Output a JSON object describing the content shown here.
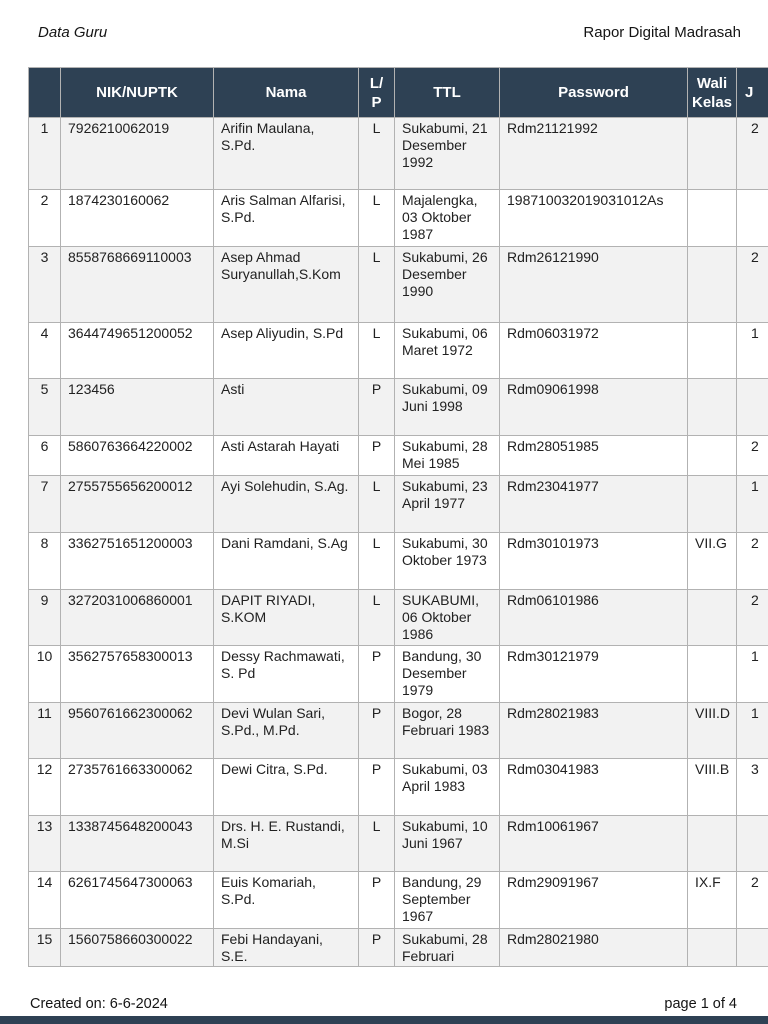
{
  "header": {
    "doc_title": "Data Guru",
    "app_title": "Rapor Digital Madrasah"
  },
  "table": {
    "columns": [
      "",
      "NIK/NUPTK",
      "Nama",
      "L/P",
      "TTL",
      "Password",
      "Wali Kelas",
      "J"
    ],
    "rows": [
      {
        "no": "1",
        "nik": "7926210062019",
        "nama": "Arifin Maulana, S.Pd.",
        "lp": "L",
        "ttl": "Sukabumi, 21 Desember 1992",
        "password": "Rdm21121992",
        "wali_kelas": "",
        "jml": "2"
      },
      {
        "no": "2",
        "nik": "1874230160062",
        "nama": "Aris Salman Alfarisi, S.Pd.",
        "lp": "L",
        "ttl": "Majalengka, 03 Oktober 1987",
        "password": "198710032019031012As",
        "wali_kelas": "",
        "jml": ""
      },
      {
        "no": "3",
        "nik": "8558768669110003",
        "nama": "Asep Ahmad Suryanullah,S.Kom",
        "lp": "L",
        "ttl": "Sukabumi, 26 Desember 1990",
        "password": "Rdm26121990",
        "wali_kelas": "",
        "jml": "2"
      },
      {
        "no": "4",
        "nik": "3644749651200052",
        "nama": "Asep Aliyudin, S.Pd",
        "lp": "L",
        "ttl": "Sukabumi, 06 Maret 1972",
        "password": "Rdm06031972",
        "wali_kelas": "",
        "jml": "1"
      },
      {
        "no": "5",
        "nik": "123456",
        "nama": "Asti",
        "lp": "P",
        "ttl": "Sukabumi, 09 Juni 1998",
        "password": "Rdm09061998",
        "wali_kelas": "",
        "jml": ""
      },
      {
        "no": "6",
        "nik": "5860763664220002",
        "nama": "Asti Astarah Hayati",
        "lp": "P",
        "ttl": "Sukabumi, 28 Mei 1985",
        "password": "Rdm28051985",
        "wali_kelas": "",
        "jml": "2"
      },
      {
        "no": "7",
        "nik": "2755755656200012",
        "nama": "Ayi Solehudin, S.Ag.",
        "lp": "L",
        "ttl": "Sukabumi, 23 April 1977",
        "password": "Rdm23041977",
        "wali_kelas": "",
        "jml": "1"
      },
      {
        "no": "8",
        "nik": "3362751651200003",
        "nama": "Dani Ramdani, S.Ag",
        "lp": "L",
        "ttl": "Sukabumi, 30 Oktober 1973",
        "password": "Rdm30101973",
        "wali_kelas": "VII.G",
        "jml": "2"
      },
      {
        "no": "9",
        "nik": "3272031006860001",
        "nama": "DAPIT RIYADI, S.KOM",
        "lp": "L",
        "ttl": "SUKABUMI, 06 Oktober 1986",
        "password": "Rdm06101986",
        "wali_kelas": "",
        "jml": "2"
      },
      {
        "no": "10",
        "nik": "3562757658300013",
        "nama": "Dessy Rachmawati, S. Pd",
        "lp": "P",
        "ttl": "Bandung, 30 Desember 1979",
        "password": "Rdm30121979",
        "wali_kelas": "",
        "jml": "1"
      },
      {
        "no": "11",
        "nik": "9560761662300062",
        "nama": "Devi Wulan Sari, S.Pd., M.Pd.",
        "lp": "P",
        "ttl": "Bogor, 28 Februari 1983",
        "password": "Rdm28021983",
        "wali_kelas": "VIII.D",
        "jml": "1"
      },
      {
        "no": "12",
        "nik": "2735761663300062",
        "nama": "Dewi Citra, S.Pd.",
        "lp": "P",
        "ttl": "Sukabumi, 03 April 1983",
        "password": "Rdm03041983",
        "wali_kelas": "VIII.B",
        "jml": "3"
      },
      {
        "no": "13",
        "nik": "1338745648200043",
        "nama": "Drs. H. E. Rustandi, M.Si",
        "lp": "L",
        "ttl": "Sukabumi, 10 Juni 1967",
        "password": "Rdm10061967",
        "wali_kelas": "",
        "jml": ""
      },
      {
        "no": "14",
        "nik": "6261745647300063",
        "nama": "Euis Komariah, S.Pd.",
        "lp": "P",
        "ttl": "Bandung, 29 September 1967",
        "password": "Rdm29091967",
        "wali_kelas": "IX.F",
        "jml": "2"
      },
      {
        "no": "15",
        "nik": "1560758660300022",
        "nama": "Febi Handayani, S.E.",
        "lp": "P",
        "ttl": "Sukabumi, 28 Februari",
        "password": "Rdm28021980",
        "wali_kelas": "",
        "jml": ""
      }
    ]
  },
  "footer": {
    "created": "Created on: 6-6-2024",
    "page": "page 1 of 4"
  },
  "colors": {
    "header_bg": "#2e4154",
    "row_alt_bg": "#f2f2f2",
    "border": "#b2b2b2"
  }
}
